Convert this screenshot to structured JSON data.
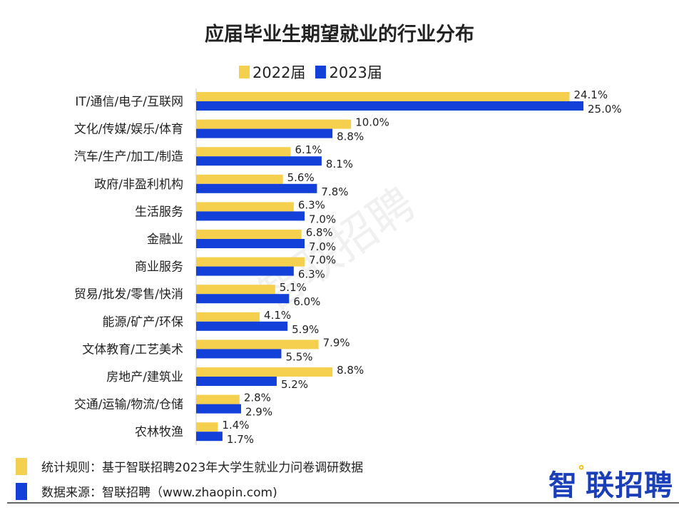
{
  "chart_data": {
    "type": "bar",
    "orientation": "horizontal",
    "title": "应届毕业生期望就业的行业分布",
    "categories": [
      "IT/通信/电子/互联网",
      "文化/传媒/娱乐/体育",
      "汽车/生产/加工/制造",
      "政府/非盈利机构",
      "生活服务",
      "金融业",
      "商业服务",
      "贸易/批发/零售/快消",
      "能源/矿产/环保",
      "文体教育/工艺美术",
      "房地产/建筑业",
      "交通/运输/物流/仓储",
      "农林牧渔"
    ],
    "series": [
      {
        "name": "2022届",
        "color": "#F5CF4E",
        "values": [
          24.1,
          10.0,
          6.1,
          5.6,
          6.3,
          6.8,
          7.0,
          5.1,
          4.1,
          7.9,
          8.8,
          2.8,
          1.4
        ],
        "labels": [
          "24.1%",
          "10.0%",
          "6.1%",
          "5.6%",
          "6.3%",
          "6.8%",
          "7.0%",
          "5.1%",
          "4.1%",
          "7.9%",
          "8.8%",
          "2.8%",
          "1.4%"
        ]
      },
      {
        "name": "2023届",
        "color": "#1240D8",
        "values": [
          25.0,
          8.8,
          8.1,
          7.8,
          7.0,
          7.0,
          6.3,
          6.0,
          5.9,
          5.5,
          5.2,
          2.9,
          1.7
        ],
        "labels": [
          "25.0%",
          "8.8%",
          "8.1%",
          "7.8%",
          "7.0%",
          "7.0%",
          "6.3%",
          "6.0%",
          "5.9%",
          "5.5%",
          "5.2%",
          "2.9%",
          "1.7%"
        ]
      }
    ],
    "unit": "%",
    "legend": "top",
    "grid": false
  },
  "notes": {
    "rule": "统计规则：基于智联招聘2023年大学生就业力问卷调研数据",
    "source": "数据来源：智联招聘（www.zhaopin.com)"
  },
  "logo": "智联招聘",
  "watermark": "智联招聘"
}
